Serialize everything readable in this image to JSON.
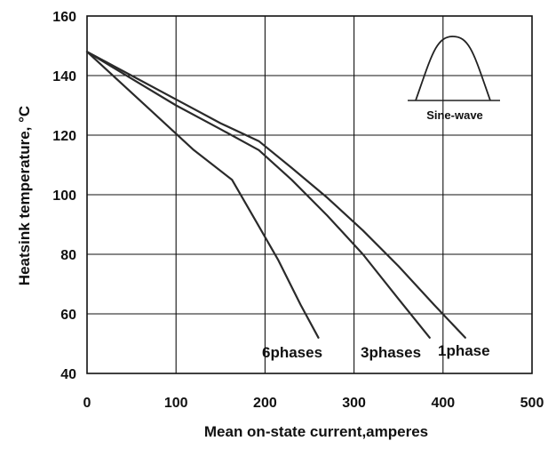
{
  "chart_data": {
    "type": "line",
    "title": "",
    "xlabel": "Mean on-state current,amperes",
    "ylabel": "Heatsink temperature, °C",
    "xlim": [
      0,
      500
    ],
    "ylim": [
      40,
      160
    ],
    "x_ticks": [
      0,
      100,
      200,
      300,
      400,
      500
    ],
    "y_ticks": [
      40,
      60,
      80,
      100,
      120,
      140,
      160
    ],
    "x_tick_labels": [
      "0",
      "100",
      "200",
      "300",
      "400",
      "500"
    ],
    "y_tick_labels": [
      "40",
      "60",
      "80",
      "100",
      "120",
      "140",
      "160"
    ],
    "grid": true,
    "series": [
      {
        "name": "6phases",
        "x": [
          0,
          40,
          80,
          120,
          163,
          190,
          215,
          240,
          260
        ],
        "y": [
          148,
          137,
          126,
          115,
          105,
          91,
          78,
          63,
          52
        ]
      },
      {
        "name": "3phases",
        "x": [
          0,
          50,
          100,
          150,
          193,
          230,
          270,
          310,
          350,
          385
        ],
        "y": [
          148,
          139,
          130,
          122,
          115,
          105,
          93,
          80,
          65,
          52
        ]
      },
      {
        "name": "1phase",
        "x": [
          0,
          50,
          100,
          150,
          193,
          230,
          270,
          310,
          350,
          390,
          425
        ],
        "y": [
          148,
          140,
          132,
          124,
          118,
          109,
          99,
          88,
          76,
          63,
          52
        ]
      }
    ],
    "inset": {
      "label": "Sine-wave"
    }
  }
}
